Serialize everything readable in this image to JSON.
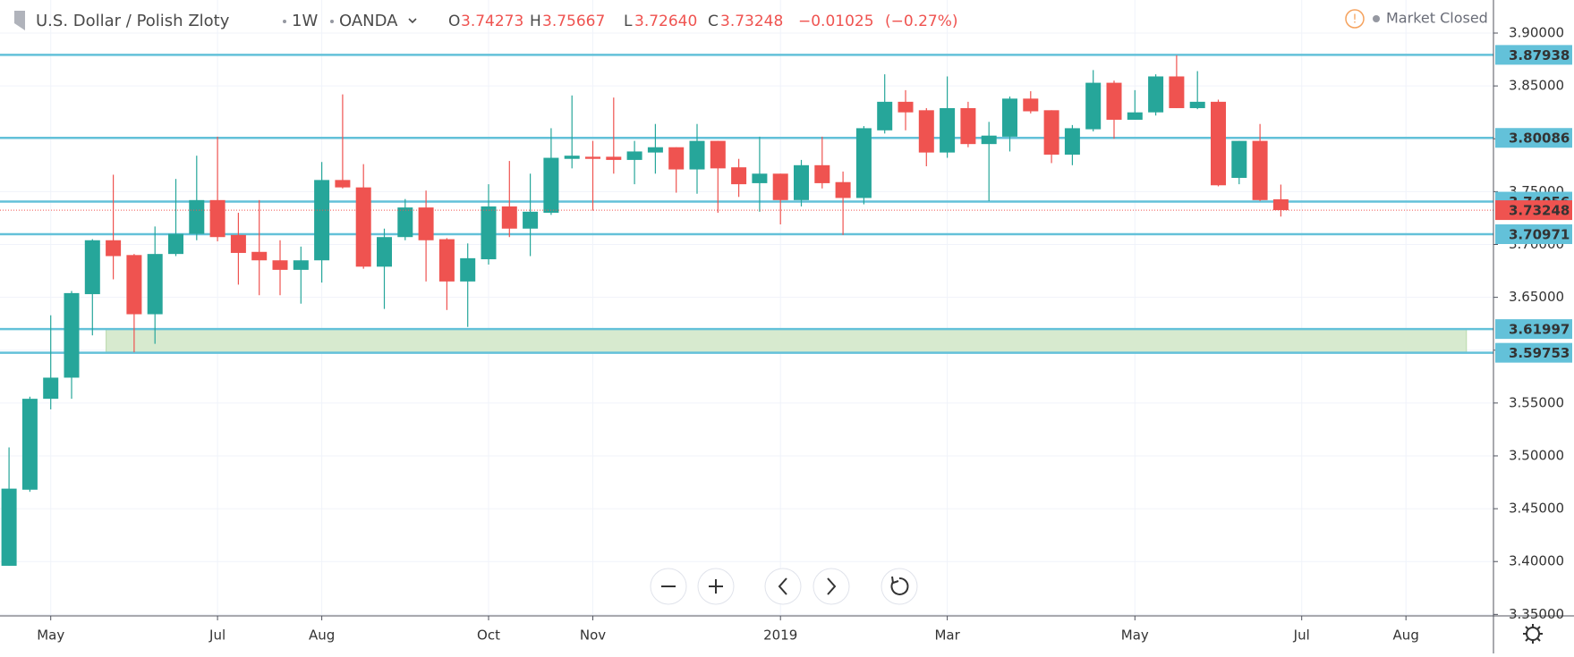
{
  "chart_data": {
    "type": "candlestick",
    "title": "U.S. Dollar / Polish Zloty",
    "interval": "1W",
    "source": "OANDA",
    "ohlc_labels": [
      "O",
      "H",
      "L",
      "C"
    ],
    "header_values": [
      {
        "value": 3.74273,
        "label": "3.74273"
      },
      {
        "value": 3.75667,
        "label": "3.75667"
      },
      {
        "value": 3.7264,
        "label": "3.72640"
      },
      {
        "value": 3.73248,
        "label": "3.73248"
      }
    ],
    "change": {
      "value": -0.01025,
      "label": "−0.01025"
    },
    "change_pct": {
      "value": -0.27,
      "label": "(−0.27%)"
    },
    "status": "Market Closed",
    "up_color": "#26a69a",
    "down_color": "#ef5350",
    "level_color": "#63c1d9",
    "zone_color": "#d7eacf",
    "categories": [
      null,
      null,
      "May",
      null,
      null,
      null,
      null,
      null,
      null,
      null,
      "Jul",
      null,
      null,
      null,
      null,
      "Aug",
      null,
      null,
      null,
      null,
      null,
      null,
      null,
      "Oct",
      null,
      null,
      null,
      null,
      "Nov",
      null,
      null,
      null,
      null,
      null,
      null,
      null,
      null,
      "2019",
      null,
      null,
      null,
      null,
      null,
      null,
      null,
      "Mar",
      null,
      null,
      null,
      null,
      null,
      null,
      null,
      null,
      "May",
      null,
      null,
      null,
      null,
      null,
      null,
      null,
      "Jul",
      null,
      null,
      null,
      null,
      "Aug",
      null,
      null,
      null,
      null
    ],
    "open": [
      3.396,
      3.468,
      3.554,
      3.574,
      3.653,
      3.704,
      3.69,
      3.634,
      3.691,
      3.71,
      3.742,
      3.709,
      3.693,
      3.685,
      3.676,
      3.685,
      3.761,
      3.754,
      3.679,
      3.707,
      3.735,
      3.705,
      3.665,
      3.686,
      3.736,
      3.715,
      3.73,
      3.781,
      3.783,
      3.783,
      3.78,
      3.787,
      3.792,
      3.771,
      3.798,
      3.773,
      3.758,
      3.767,
      3.742,
      3.775,
      3.759,
      3.744,
      3.808,
      3.835,
      3.827,
      3.787,
      3.829,
      3.795,
      3.802,
      3.838,
      3.827,
      3.785,
      3.809,
      3.853,
      3.818,
      3.825,
      3.859,
      3.829,
      3.835,
      3.763,
      3.798,
      3.74273,
      null,
      null,
      null,
      null,
      null,
      null,
      null,
      null,
      null,
      null
    ],
    "high": [
      3.508,
      3.556,
      3.633,
      3.656,
      3.705,
      3.766,
      3.691,
      3.717,
      3.762,
      3.784,
      3.802,
      3.73,
      3.742,
      3.704,
      3.698,
      3.778,
      3.842,
      3.776,
      3.715,
      3.743,
      3.751,
      3.706,
      3.701,
      3.757,
      3.779,
      3.767,
      3.81,
      3.841,
      3.798,
      3.839,
      3.798,
      3.814,
      3.792,
      3.814,
      3.798,
      3.781,
      3.802,
      3.767,
      3.78,
      3.802,
      3.769,
      3.812,
      3.861,
      3.846,
      3.829,
      3.859,
      3.835,
      3.816,
      3.84,
      3.845,
      3.827,
      3.813,
      3.865,
      3.855,
      3.846,
      3.861,
      3.879,
      3.864,
      3.837,
      3.798,
      3.814,
      3.75667,
      null,
      null,
      null,
      null,
      null,
      null,
      null,
      null,
      null,
      null
    ],
    "low": [
      3.396,
      3.466,
      3.544,
      3.554,
      3.614,
      3.667,
      3.598,
      3.606,
      3.689,
      3.704,
      3.703,
      3.662,
      3.652,
      3.652,
      3.644,
      3.664,
      3.753,
      3.677,
      3.639,
      3.704,
      3.665,
      3.638,
      3.622,
      3.681,
      3.707,
      3.689,
      3.728,
      3.772,
      3.732,
      3.767,
      3.757,
      3.767,
      3.749,
      3.748,
      3.73,
      3.745,
      3.731,
      3.719,
      3.736,
      3.753,
      3.709,
      3.738,
      3.805,
      3.808,
      3.774,
      3.782,
      3.792,
      3.741,
      3.788,
      3.824,
      3.777,
      3.775,
      3.807,
      3.8,
      3.818,
      3.822,
      3.829,
      3.828,
      3.755,
      3.757,
      3.741,
      3.7264,
      null,
      null,
      null,
      null,
      null,
      null,
      null,
      null,
      null,
      null
    ],
    "close": [
      3.469,
      3.554,
      3.574,
      3.654,
      3.704,
      3.689,
      3.634,
      3.691,
      3.71,
      3.742,
      3.707,
      3.692,
      3.685,
      3.676,
      3.685,
      3.761,
      3.754,
      3.679,
      3.707,
      3.735,
      3.704,
      3.665,
      3.687,
      3.736,
      3.715,
      3.731,
      3.782,
      3.784,
      3.781,
      3.78,
      3.788,
      3.792,
      3.771,
      3.798,
      3.772,
      3.757,
      3.767,
      3.742,
      3.775,
      3.758,
      3.744,
      3.81,
      3.835,
      3.825,
      3.787,
      3.829,
      3.795,
      3.803,
      3.838,
      3.826,
      3.785,
      3.81,
      3.853,
      3.818,
      3.825,
      3.859,
      3.829,
      3.835,
      3.756,
      3.798,
      3.742,
      3.73248,
      null,
      null,
      null,
      null,
      null,
      null,
      null,
      null,
      null,
      null
    ],
    "ylim": [
      3.3486,
      3.9313
    ],
    "yticks": [
      {
        "value": 3.35,
        "label": "3.35000"
      },
      {
        "value": 3.4,
        "label": "3.40000"
      },
      {
        "value": 3.45,
        "label": "3.45000"
      },
      {
        "value": 3.5,
        "label": "3.50000"
      },
      {
        "value": 3.55,
        "label": "3.55000"
      },
      {
        "value": 3.6,
        "label": "3.60000"
      },
      {
        "value": 3.65,
        "label": "3.65000"
      },
      {
        "value": 3.7,
        "label": "3.70000"
      },
      {
        "value": 3.75,
        "label": "3.75000"
      },
      {
        "value": 3.8,
        "label": "3.80000"
      },
      {
        "value": 3.85,
        "label": "3.85000"
      },
      {
        "value": 3.9,
        "label": "3.90000"
      }
    ],
    "levels": [
      3.87938,
      3.80086,
      3.74056,
      3.70971,
      3.61997,
      3.59753
    ],
    "zone": {
      "low": 3.59753,
      "high": 3.61997
    },
    "last_price": 3.73248,
    "grid": true
  }
}
